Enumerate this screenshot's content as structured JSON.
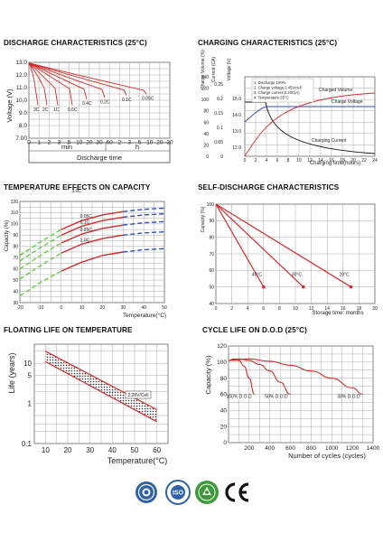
{
  "chart_data": [
    {
      "id": "discharge",
      "type": "line",
      "title": "DISCHARGE CHARACTERISTICS (25°C)",
      "ylabel": "Voltage (V)",
      "xlabel": "Discharge time",
      "ylim": [
        7.0,
        13.0
      ],
      "y_ticks": [
        "13.0",
        "12.0",
        "11.0",
        "10.0",
        "9.0",
        "8.0",
        "7.00"
      ],
      "x_ticks": [
        "0",
        "1",
        "2",
        "3",
        "5",
        "10",
        "20",
        "30",
        "60",
        "2",
        "3",
        "5",
        "10",
        "20",
        "30"
      ],
      "x_unit_labels": [
        "min",
        "h"
      ],
      "series": [
        {
          "name": "3C",
          "end_v": 9.6
        },
        {
          "name": "2C",
          "end_v": 9.6
        },
        {
          "name": "1C",
          "end_v": 9.6
        },
        {
          "name": "0.6C",
          "end_v": 9.6
        },
        {
          "name": "0.4C",
          "end_v": 10.1
        },
        {
          "name": "0.2C",
          "end_v": 10.2
        },
        {
          "name": "0.1C",
          "end_v": 10.4
        },
        {
          "name": "0.05C",
          "end_v": 10.5
        }
      ],
      "curve_labels": [
        "3C",
        "2C",
        "1C",
        "0.6C",
        "0.4C",
        "0.2C",
        "0.1C",
        "0.05C"
      ]
    },
    {
      "id": "charging",
      "type": "line",
      "title": "CHARGING CHARACTERISTICS (25°C)",
      "xlabel": "Charging time(hours)",
      "x_ticks": [
        "0",
        "2",
        "4",
        "6",
        "8",
        "10",
        "12",
        "14",
        "16",
        "18",
        "20",
        "22",
        "24"
      ],
      "y1_label": "Charge Volume (%)",
      "y1_ticks": [
        "140",
        "120",
        "100",
        "80",
        "60",
        "40",
        "20",
        "0"
      ],
      "y2_label": "Current (CA)",
      "y2_ticks": [
        "0.25",
        "0.2",
        "0.15",
        "0.1",
        "0.05",
        "0"
      ],
      "y3_label": "Voltage (V)",
      "y3_ticks": [
        "15.0",
        "14.0",
        "13.0",
        "12.0"
      ],
      "legend": [
        "1. Discharge:100%",
        "2. Charge voltage:2.45V/cell",
        "3. Charge current:0.20C(A)",
        "4. Temperature:25°C"
      ],
      "series_labels": [
        "Charged Volume",
        "Charge Voltage",
        "Charging Current"
      ]
    },
    {
      "id": "temperature",
      "type": "line",
      "title": "TEMPERATURE EFFECTS ON CAPACITY",
      "ylabel": "Capacity (%)",
      "xlabel": "Temperature(°C)",
      "xlim": [
        -20,
        50
      ],
      "ylim": [
        30,
        120
      ],
      "x_ticks": [
        "-20",
        "-10",
        "0",
        "10",
        "20",
        "30",
        "40",
        "50"
      ],
      "y_ticks": [
        "120",
        "110",
        "100",
        "90",
        "80",
        "70",
        "60",
        "50",
        "40",
        "30"
      ],
      "series": [
        {
          "name": "0.05C",
          "x": [
            -20,
            -10,
            0,
            10,
            20,
            30,
            40,
            50
          ],
          "y": [
            72,
            84,
            95,
            103,
            108,
            111,
            113,
            114
          ]
        },
        {
          "name": "0.1C",
          "x": [
            -20,
            -10,
            0,
            10,
            20,
            30,
            40,
            50
          ],
          "y": [
            67,
            79,
            90,
            98,
            103,
            106,
            108,
            109
          ]
        },
        {
          "name": "0.25C",
          "x": [
            -20,
            -10,
            0,
            10,
            20,
            30,
            40,
            50
          ],
          "y": [
            60,
            72,
            83,
            91,
            96,
            99,
            101,
            102
          ]
        },
        {
          "name": "1.0C",
          "x": [
            -20,
            -10,
            0,
            10,
            20,
            30,
            40,
            50
          ],
          "y": [
            51,
            63,
            74,
            82,
            87,
            90,
            92,
            93
          ]
        },
        {
          "name": "3.0C",
          "x": [
            -20,
            -10,
            0,
            10,
            20,
            30,
            40,
            50
          ],
          "y": [
            36,
            48,
            58,
            66,
            72,
            75,
            77,
            78
          ]
        }
      ]
    },
    {
      "id": "self_discharge",
      "type": "line",
      "title": "SELF-DISCHARGE CHARACTERISTICS",
      "ylabel": "Capacity (%)",
      "xlabel": "Storage time: months",
      "xlim": [
        0,
        20
      ],
      "ylim": [
        40,
        100
      ],
      "x_ticks": [
        "0",
        "2",
        "4",
        "6",
        "8",
        "10",
        "12",
        "14",
        "16",
        "18",
        "20"
      ],
      "y_ticks": [
        "100",
        "90",
        "80",
        "70",
        "60",
        "50",
        "40"
      ],
      "series": [
        {
          "name": "40°C",
          "x": [
            0,
            6
          ],
          "y": [
            100,
            50
          ]
        },
        {
          "name": "30°C",
          "x": [
            0,
            11
          ],
          "y": [
            100,
            50
          ]
        },
        {
          "name": "20°C",
          "x": [
            0,
            17
          ],
          "y": [
            100,
            50
          ]
        }
      ]
    },
    {
      "id": "floating",
      "type": "line",
      "title": "FLOATING LIFE ON TEMPERATURE",
      "ylabel": "Life (years)",
      "xlabel": "Temperature(°C)",
      "xlim": [
        5,
        65
      ],
      "ylim": [
        0.1,
        30
      ],
      "y_log": true,
      "x_ticks": [
        "10",
        "20",
        "30",
        "40",
        "50",
        "60"
      ],
      "y_ticks": [
        "10",
        "5",
        "1",
        "0.1"
      ],
      "annotation": "2.28V/Cell",
      "series": [
        {
          "name": "upper",
          "x": [
            10,
            60
          ],
          "y": [
            20,
            0.7
          ]
        },
        {
          "name": "lower",
          "x": [
            10,
            60
          ],
          "y": [
            11,
            0.35
          ]
        }
      ]
    },
    {
      "id": "cycle",
      "type": "line",
      "title": "CYCLE LIFE ON D.O.D (25°C)",
      "ylabel": "Capacity (%)",
      "xlabel": "Number of cycles (cycles)",
      "xlim": [
        0,
        1400
      ],
      "ylim": [
        0,
        120
      ],
      "x_ticks": [
        "200",
        "400",
        "600",
        "800",
        "1000",
        "1200",
        "1400"
      ],
      "y_ticks": [
        "120",
        "100",
        "80",
        "60",
        "40",
        "20",
        "0"
      ],
      "series": [
        {
          "name": "100% D.O.D",
          "x": [
            0,
            50,
            100,
            150,
            200,
            250
          ],
          "y": [
            102,
            104,
            102,
            95,
            80,
            60
          ]
        },
        {
          "name": "50% D.O.D",
          "x": [
            0,
            100,
            200,
            300,
            400,
            500,
            600
          ],
          "y": [
            102,
            104,
            102,
            97,
            89,
            75,
            60
          ]
        },
        {
          "name": "30% D.O.D",
          "x": [
            0,
            200,
            400,
            600,
            800,
            1000,
            1200,
            1300
          ],
          "y": [
            102,
            104,
            101,
            96,
            89,
            80,
            68,
            60
          ]
        }
      ]
    }
  ],
  "certifications": [
    "certificate-seal-1",
    "iso-certificate-seal",
    "green-recycle-seal",
    "CE"
  ]
}
